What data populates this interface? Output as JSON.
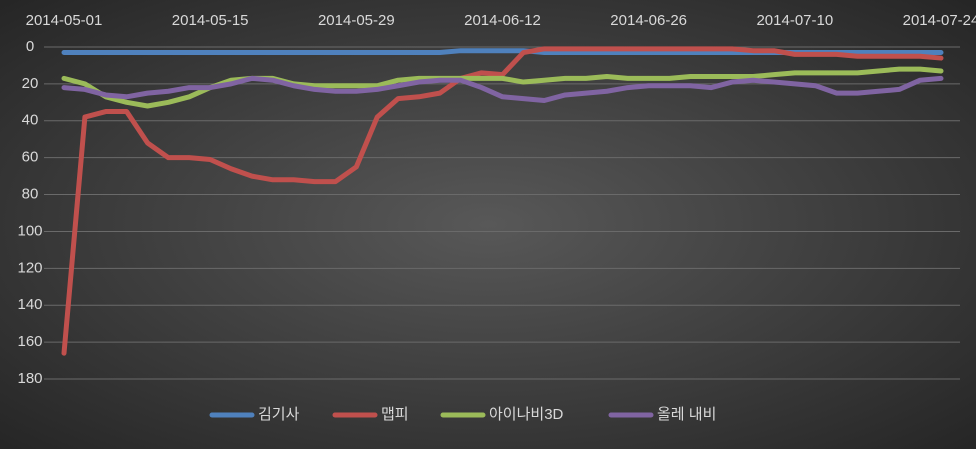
{
  "chart_data": {
    "type": "line",
    "x": [
      "2014-05-01",
      "2014-05-03",
      "2014-05-05",
      "2014-05-07",
      "2014-05-09",
      "2014-05-11",
      "2014-05-13",
      "2014-05-15",
      "2014-05-17",
      "2014-05-19",
      "2014-05-21",
      "2014-05-23",
      "2014-05-25",
      "2014-05-27",
      "2014-05-29",
      "2014-05-31",
      "2014-06-02",
      "2014-06-04",
      "2014-06-06",
      "2014-06-08",
      "2014-06-10",
      "2014-06-12",
      "2014-06-14",
      "2014-06-16",
      "2014-06-18",
      "2014-06-20",
      "2014-06-22",
      "2014-06-24",
      "2014-06-26",
      "2014-06-28",
      "2014-06-30",
      "2014-07-02",
      "2014-07-04",
      "2014-07-06",
      "2014-07-08",
      "2014-07-10",
      "2014-07-12",
      "2014-07-14",
      "2014-07-16",
      "2014-07-18",
      "2014-07-20",
      "2014-07-22",
      "2014-07-24"
    ],
    "xlim": [
      "2014-05-01",
      "2014-07-24"
    ],
    "xticks": [
      "2014-05-01",
      "2014-05-15",
      "2014-05-29",
      "2014-06-12",
      "2014-06-26",
      "2014-07-10",
      "2014-07-24"
    ],
    "ylim": [
      180,
      0
    ],
    "yticks": [
      0,
      20,
      40,
      60,
      80,
      100,
      120,
      140,
      160,
      180
    ],
    "grid": true,
    "legend": "bottom",
    "series": [
      {
        "name": "김기사",
        "color": "#4f81bd",
        "values": [
          3,
          3,
          3,
          3,
          3,
          3,
          3,
          3,
          3,
          3,
          3,
          3,
          3,
          3,
          3,
          3,
          3,
          3,
          3,
          2,
          2,
          2,
          2,
          3,
          3,
          3,
          3,
          3,
          3,
          3,
          3,
          3,
          3,
          3,
          3,
          3,
          3,
          3,
          3,
          3,
          3,
          3,
          3
        ]
      },
      {
        "name": "맵피",
        "color": "#c0504d",
        "values": [
          166,
          38,
          35,
          35,
          52,
          60,
          60,
          61,
          66,
          70,
          72,
          72,
          73,
          73,
          65,
          38,
          28,
          27,
          25,
          17,
          14,
          15,
          3,
          1,
          1,
          1,
          1,
          1,
          1,
          1,
          1,
          1,
          1,
          2,
          2,
          4,
          4,
          4,
          5,
          5,
          5,
          5,
          6
        ]
      },
      {
        "name": "아이나비3D",
        "color": "#9bbb59",
        "values": [
          17,
          20,
          27,
          30,
          32,
          30,
          27,
          22,
          18,
          17,
          17,
          20,
          21,
          21,
          21,
          21,
          18,
          17,
          17,
          17,
          17,
          17,
          19,
          18,
          17,
          17,
          16,
          17,
          17,
          17,
          16,
          16,
          16,
          16,
          15,
          14,
          14,
          14,
          14,
          13,
          12,
          12,
          13
        ]
      },
      {
        "name": "올레 내비",
        "color": "#8064a2",
        "values": [
          22,
          23,
          26,
          27,
          25,
          24,
          22,
          22,
          20,
          17,
          18,
          21,
          23,
          24,
          24,
          23,
          21,
          19,
          18,
          18,
          22,
          27,
          28,
          29,
          26,
          25,
          24,
          22,
          21,
          21,
          21,
          22,
          19,
          18,
          19,
          20,
          21,
          25,
          25,
          24,
          23,
          18,
          17
        ]
      }
    ]
  }
}
